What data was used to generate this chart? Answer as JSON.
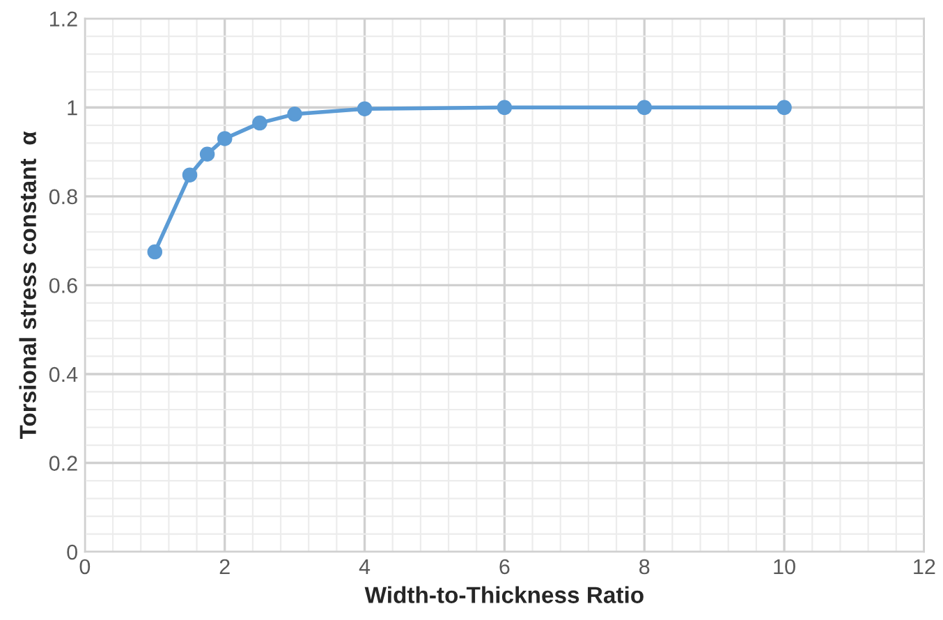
{
  "chart_data": {
    "type": "line",
    "xlabel": "Width-to-Thickness Ratio",
    "ylabel": "Torsional stress constant  α",
    "x": [
      1,
      1.5,
      1.75,
      2,
      2.5,
      3,
      4,
      6,
      8,
      10
    ],
    "series": [
      {
        "color": "#5b9bd5",
        "values": [
          0.675,
          0.848,
          0.895,
          0.93,
          0.965,
          0.985,
          0.997,
          1.0,
          1.0,
          1.0
        ]
      }
    ],
    "xlim": [
      0,
      12
    ],
    "xticks": [
      0,
      2,
      4,
      6,
      8,
      10,
      12
    ],
    "ylim": [
      0,
      1.2
    ],
    "yticks": [
      0,
      0.2,
      0.4,
      0.6,
      0.8,
      1,
      1.2
    ],
    "grid": true,
    "marker": "circle",
    "line_style": "solid"
  }
}
